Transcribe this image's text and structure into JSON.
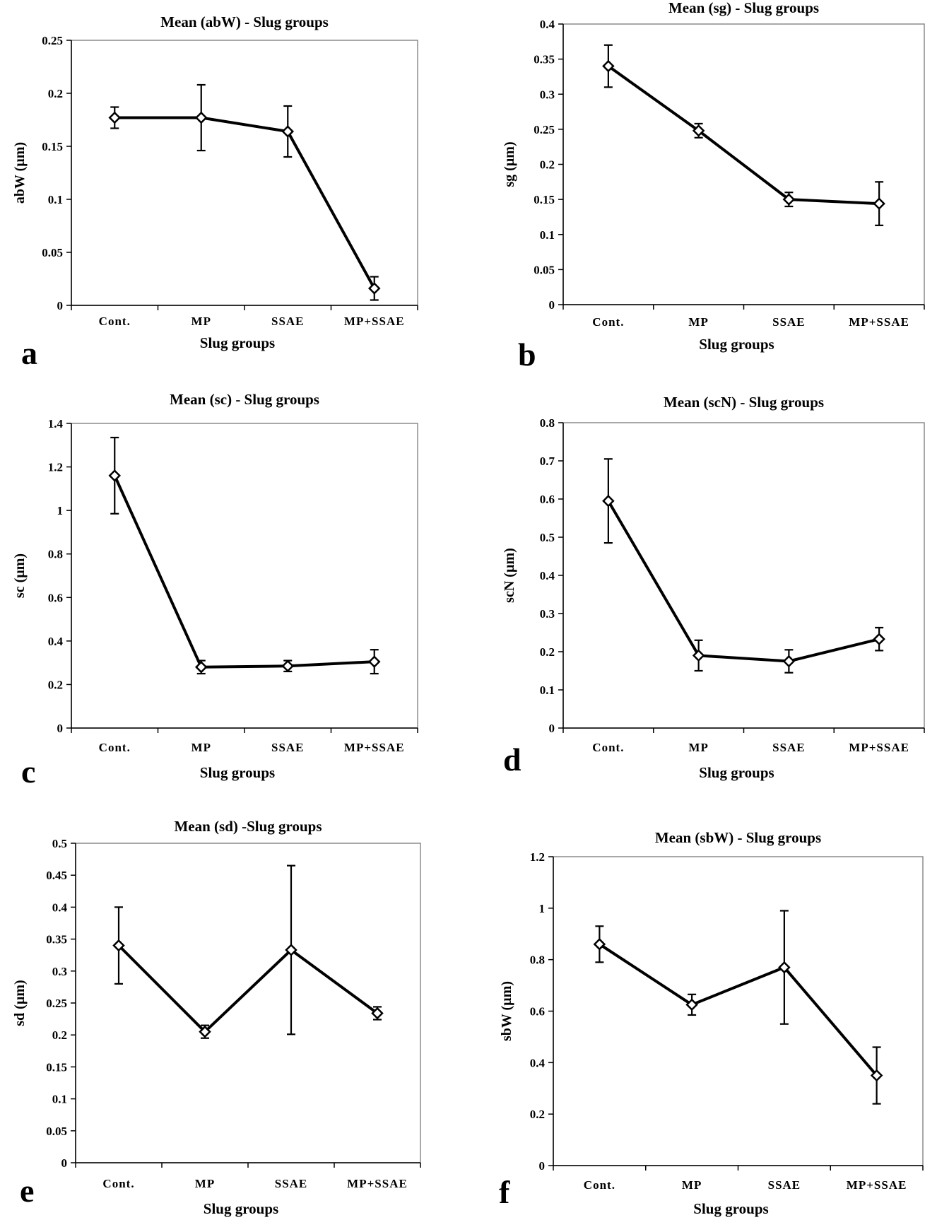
{
  "chart_data": [
    {
      "type": "line",
      "panel_label": "a",
      "title": "Mean (abW)  - Slug groups",
      "xlabel": "Slug groups",
      "ylabel": "abW (µm)",
      "categories": [
        "Cont.",
        "MP",
        "SSAE",
        "MP+SSAE"
      ],
      "ylim": [
        0,
        0.25
      ],
      "yticks": [
        "0",
        "0.05",
        "0.1",
        "0.15",
        "0.2",
        "0.25"
      ],
      "values": [
        0.177,
        0.177,
        0.164,
        0.016
      ],
      "errors": [
        0.01,
        0.031,
        0.024,
        0.011
      ],
      "marker": "diamond",
      "color": "#000000"
    },
    {
      "type": "line",
      "panel_label": "b",
      "title": "Mean (sg) - Slug groups",
      "xlabel": "Slug groups",
      "ylabel": "sg (µm)",
      "categories": [
        "Cont.",
        "MP",
        "SSAE",
        "MP+SSAE"
      ],
      "ylim": [
        0,
        0.4
      ],
      "yticks": [
        "0",
        "0.05",
        "0.1",
        "0.15",
        "0.2",
        "0.25",
        "0.3",
        "0.35",
        "0.4"
      ],
      "values": [
        0.34,
        0.248,
        0.15,
        0.144
      ],
      "errors": [
        0.03,
        0.01,
        0.01,
        0.031
      ],
      "marker": "diamond",
      "color": "#000000"
    },
    {
      "type": "line",
      "panel_label": "c",
      "title": "Mean (sc) - Slug groups",
      "xlabel": "Slug groups",
      "ylabel": "sc (µm)",
      "categories": [
        "Cont.",
        "MP",
        "SSAE",
        "MP+SSAE"
      ],
      "ylim": [
        0,
        1.4
      ],
      "yticks": [
        "0",
        "0.2",
        "0.4",
        "0.6",
        "0.8",
        "1",
        "1.2",
        "1.4"
      ],
      "values": [
        1.16,
        0.28,
        0.285,
        0.305
      ],
      "errors": [
        0.175,
        0.03,
        0.025,
        0.055
      ],
      "marker": "diamond",
      "color": "#000000"
    },
    {
      "type": "line",
      "panel_label": "d",
      "title": "Mean (scN) - Slug groups",
      "xlabel": "Slug groups",
      "ylabel": "scN (µm)",
      "categories": [
        "Cont.",
        "MP",
        "SSAE",
        "MP+SSAE"
      ],
      "ylim": [
        0,
        0.8
      ],
      "yticks": [
        "0",
        "0.1",
        "0.2",
        "0.3",
        "0.4",
        "0.5",
        "0.6",
        "0.7",
        "0.8"
      ],
      "values": [
        0.595,
        0.19,
        0.175,
        0.233
      ],
      "errors": [
        0.11,
        0.04,
        0.03,
        0.03
      ],
      "marker": "diamond",
      "color": "#000000"
    },
    {
      "type": "line",
      "panel_label": "e",
      "title": "Mean (sd) -Slug groups",
      "xlabel": "Slug groups",
      "ylabel": "sd (µm)",
      "categories": [
        "Cont.",
        "MP",
        "SSAE",
        "MP+SSAE"
      ],
      "ylim": [
        0,
        0.5
      ],
      "yticks": [
        "0",
        "0.05",
        "0.1",
        "0.15",
        "0.2",
        "0.25",
        "0.3",
        "0.35",
        "0.4",
        "0.45",
        "0.5"
      ],
      "values": [
        0.34,
        0.205,
        0.333,
        0.234
      ],
      "errors": [
        0.06,
        0.01,
        0.132,
        0.01
      ],
      "marker": "diamond",
      "color": "#000000"
    },
    {
      "type": "line",
      "panel_label": "f",
      "title": "Mean (sbW) - Slug groups",
      "xlabel": "Slug groups",
      "ylabel": "sbW (µm)",
      "categories": [
        "Cont.",
        "MP",
        "SSAE",
        "MP+SSAE"
      ],
      "ylim": [
        0,
        1.2
      ],
      "yticks": [
        "0",
        "0.2",
        "0.4",
        "0.6",
        "0.8",
        "1",
        "1.2"
      ],
      "values": [
        0.86,
        0.625,
        0.77,
        0.35
      ],
      "errors": [
        0.07,
        0.04,
        0.22,
        0.11
      ],
      "marker": "diamond",
      "color": "#000000"
    }
  ]
}
